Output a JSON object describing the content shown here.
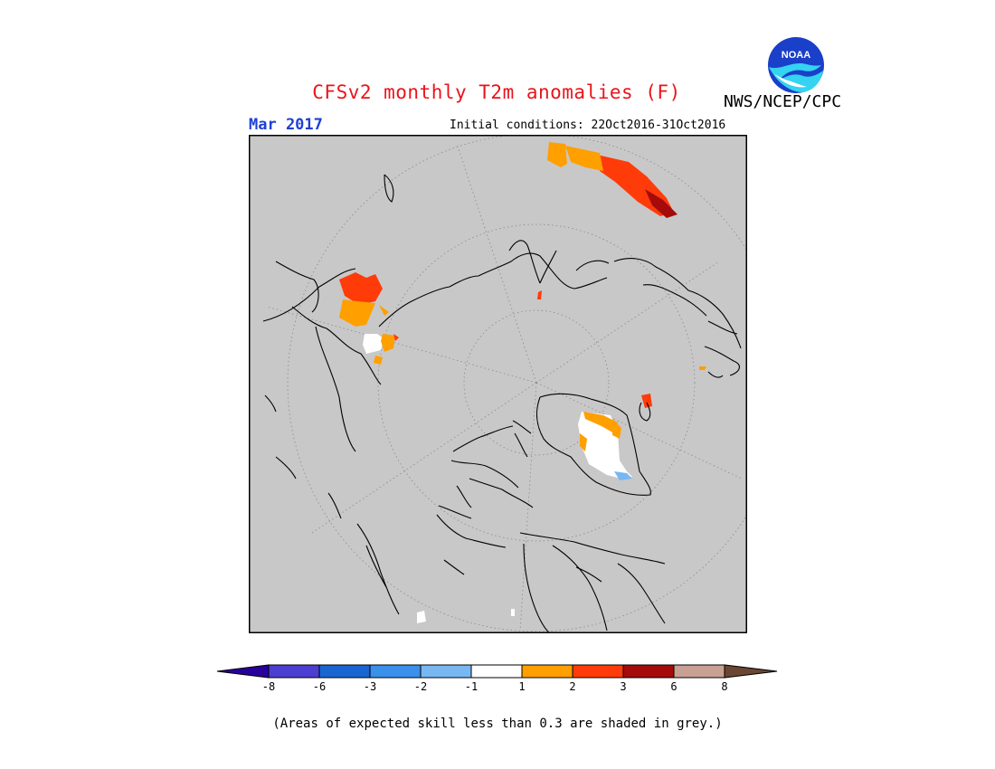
{
  "title": "CFSv2 monthly T2m anomalies (F)",
  "agency": "NWS/NCEP/CPC",
  "logo_text": "NOAA",
  "month": "Mar 2017",
  "initial_conditions": "Initial conditions: 22Oct2016-31Oct2016",
  "footnote": "(Areas of expected skill less than 0.3 are shaded in grey.)",
  "legend": {
    "ticks": [
      "-8",
      "-6",
      "-3",
      "-2",
      "-1",
      "1",
      "2",
      "3",
      "6",
      "8"
    ],
    "colors": [
      "#28009b",
      "#4b3ed0",
      "#1966d2",
      "#3a90ea",
      "#78b7f2",
      "#ffffff",
      "#ff9f00",
      "#ff3b0a",
      "#a50b0b",
      "#c9a194",
      "#6b4633"
    ]
  },
  "colors": {
    "land_mask": "#c8c8c8",
    "title": "#e8141b",
    "month": "#1f3fd6"
  }
}
